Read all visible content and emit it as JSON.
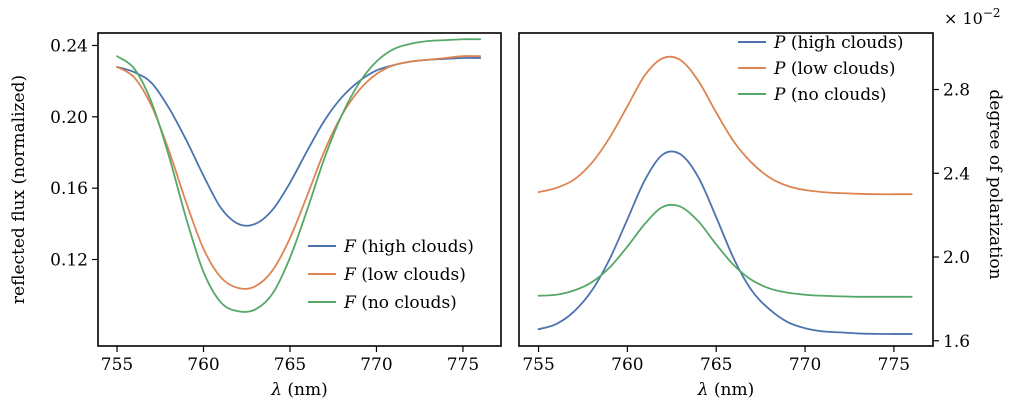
{
  "chart_data": [
    {
      "type": "line",
      "xlabel_symbol": "λ",
      "xlabel_unit": " (nm)",
      "ylabel": "reflected flux (normalized)",
      "xlim": [
        753.9,
        777.2
      ],
      "ylim": [
        0.0715,
        0.247
      ],
      "xticks": [
        755,
        760,
        765,
        770,
        775
      ],
      "yticks": [
        0.12,
        0.16,
        0.2,
        0.24
      ],
      "ytick_labels": [
        "0.12",
        "0.16",
        "0.20",
        "0.24"
      ],
      "legend_position": "lower-right",
      "series": [
        {
          "name_symbol": "F",
          "name_rest": " (high clouds)",
          "color": "#4c72b0",
          "x": [
            755,
            756,
            757,
            758,
            759,
            760,
            761,
            762,
            763,
            764,
            765,
            766,
            767,
            768,
            769,
            770,
            771,
            772,
            773,
            774,
            775,
            776
          ],
          "y": [
            0.228,
            0.225,
            0.219,
            0.205,
            0.187,
            0.167,
            0.149,
            0.14,
            0.14,
            0.148,
            0.163,
            0.181,
            0.198,
            0.211,
            0.22,
            0.226,
            0.229,
            0.231,
            0.232,
            0.2325,
            0.233,
            0.233
          ]
        },
        {
          "name_symbol": "F",
          "name_rest": " (low clouds)",
          "color": "#dd8452",
          "x": [
            755,
            756,
            757,
            758,
            759,
            760,
            761,
            762,
            763,
            764,
            765,
            766,
            767,
            768,
            769,
            770,
            771,
            772,
            773,
            774,
            775,
            776
          ],
          "y": [
            0.228,
            0.222,
            0.206,
            0.181,
            0.152,
            0.126,
            0.11,
            0.104,
            0.105,
            0.114,
            0.132,
            0.156,
            0.181,
            0.201,
            0.215,
            0.224,
            0.229,
            0.231,
            0.232,
            0.233,
            0.234,
            0.234
          ]
        },
        {
          "name_symbol": "F",
          "name_rest": " (no clouds)",
          "color": "#55a868",
          "x": [
            755,
            756,
            757,
            758,
            759,
            760,
            761,
            762,
            763,
            764,
            765,
            766,
            767,
            768,
            769,
            770,
            771,
            772,
            773,
            774,
            775,
            776
          ],
          "y": [
            0.234,
            0.227,
            0.208,
            0.178,
            0.143,
            0.113,
            0.096,
            0.091,
            0.092,
            0.101,
            0.121,
            0.148,
            0.177,
            0.201,
            0.219,
            0.231,
            0.238,
            0.241,
            0.2425,
            0.243,
            0.2435,
            0.2435
          ]
        }
      ]
    },
    {
      "type": "line",
      "xlabel_symbol": "λ",
      "xlabel_unit": " (nm)",
      "ylabel": "degree of polarization",
      "y_multiplier_base": "× 10",
      "y_multiplier_exp": "−2",
      "xlim": [
        753.9,
        777.2
      ],
      "ylim": [
        1.575,
        3.07
      ],
      "xticks": [
        755,
        760,
        765,
        770,
        775
      ],
      "yticks": [
        1.6,
        2.0,
        2.4,
        2.8
      ],
      "ytick_labels": [
        "1.6",
        "2.0",
        "2.4",
        "2.8"
      ],
      "legend_position": "top-right",
      "series": [
        {
          "name_symbol": "P",
          "name_rest": " (high clouds)",
          "color": "#4c72b0",
          "x": [
            755,
            756,
            757,
            758,
            759,
            760,
            761,
            762,
            763,
            764,
            765,
            766,
            767,
            768,
            769,
            770,
            771,
            772,
            773,
            774,
            775,
            776
          ],
          "y": [
            1.655,
            1.68,
            1.74,
            1.84,
            1.99,
            2.18,
            2.37,
            2.49,
            2.49,
            2.38,
            2.19,
            1.99,
            1.84,
            1.75,
            1.69,
            1.66,
            1.645,
            1.64,
            1.635,
            1.633,
            1.632,
            1.632
          ]
        },
        {
          "name_symbol": "P",
          "name_rest": " (low clouds)",
          "color": "#dd8452",
          "x": [
            755,
            756,
            757,
            758,
            759,
            760,
            761,
            762,
            763,
            764,
            765,
            766,
            767,
            768,
            769,
            770,
            771,
            772,
            773,
            774,
            775,
            776
          ],
          "y": [
            2.31,
            2.33,
            2.37,
            2.45,
            2.57,
            2.72,
            2.87,
            2.95,
            2.94,
            2.84,
            2.69,
            2.55,
            2.45,
            2.38,
            2.34,
            2.32,
            2.31,
            2.305,
            2.302,
            2.3,
            2.3,
            2.3
          ]
        },
        {
          "name_symbol": "P",
          "name_rest": " (no clouds)",
          "color": "#55a868",
          "x": [
            755,
            756,
            757,
            758,
            759,
            760,
            761,
            762,
            763,
            764,
            765,
            766,
            767,
            768,
            769,
            770,
            771,
            772,
            773,
            774,
            775,
            776
          ],
          "y": [
            1.815,
            1.82,
            1.84,
            1.88,
            1.95,
            2.05,
            2.16,
            2.24,
            2.24,
            2.17,
            2.06,
            1.96,
            1.89,
            1.85,
            1.83,
            1.82,
            1.815,
            1.812,
            1.81,
            1.81,
            1.81,
            1.81
          ]
        }
      ]
    }
  ]
}
